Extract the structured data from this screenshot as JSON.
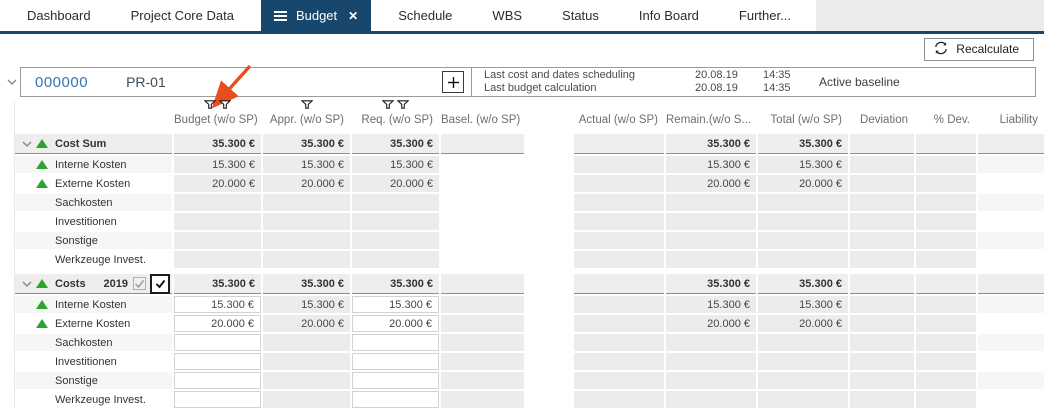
{
  "tabs": {
    "items": [
      {
        "label": "Dashboard",
        "active": false
      },
      {
        "label": "Project Core Data",
        "active": false
      },
      {
        "label": "Budget",
        "active": true
      },
      {
        "label": "Schedule",
        "active": false
      },
      {
        "label": "WBS",
        "active": false
      },
      {
        "label": "Status",
        "active": false
      },
      {
        "label": "Info Board",
        "active": false
      },
      {
        "label": "Further...",
        "active": false
      }
    ]
  },
  "toolbar": {
    "recalculate_label": "Recalculate"
  },
  "project_header": {
    "id": "000000",
    "code": "PR-01",
    "info": [
      {
        "label": "Last cost and dates scheduling",
        "date": "20.08.19",
        "time": "14:35"
      },
      {
        "label": "Last budget calculation",
        "date": "20.08.19",
        "time": "14:35"
      }
    ],
    "baseline": "Active baseline"
  },
  "table": {
    "columns": [
      {
        "key": "label",
        "header": "",
        "filters": 0
      },
      {
        "key": "budget",
        "header": "Budget (w/o SP)",
        "filters": 2
      },
      {
        "key": "appr",
        "header": "Appr. (w/o SP)",
        "filters": 1
      },
      {
        "key": "req",
        "header": "Req. (w/o SP)",
        "filters": 2
      },
      {
        "key": "basel",
        "header": "Basel. (w/o SP)",
        "filters": 0
      },
      {
        "key": "gap",
        "header": "",
        "filters": 0
      },
      {
        "key": "actual",
        "header": "Actual (w/o SP)",
        "filters": 0
      },
      {
        "key": "remain",
        "header": "Remain.(w/o S...",
        "filters": 0
      },
      {
        "key": "total",
        "header": "Total (w/o SP)",
        "filters": 0
      },
      {
        "key": "deviation",
        "header": "Deviation",
        "filters": 0
      },
      {
        "key": "pdev",
        "header": "% Dev.",
        "filters": 0
      },
      {
        "key": "liability",
        "header": "Liability",
        "filters": 0
      }
    ],
    "blocks": [
      {
        "rows": [
          {
            "type": "summary",
            "label": "Cost Sum",
            "trend": "up",
            "values": {
              "budget": "35.300 €",
              "appr": "35.300 €",
              "req": "35.300 €",
              "remain": "35.300 €",
              "total": "35.300 €"
            }
          },
          {
            "type": "child",
            "label": "Interne Kosten",
            "trend": "up",
            "values": {
              "budget": "15.300 €",
              "appr": "15.300 €",
              "req": "15.300 €",
              "remain": "15.300 €",
              "total": "15.300 €"
            }
          },
          {
            "type": "child",
            "label": "Externe Kosten",
            "trend": "up",
            "values": {
              "budget": "20.000 €",
              "appr": "20.000 €",
              "req": "20.000 €",
              "remain": "20.000 €",
              "total": "20.000 €"
            }
          },
          {
            "type": "child",
            "label": "Sachkosten",
            "values": {}
          },
          {
            "type": "child",
            "label": "Investitionen",
            "values": {}
          },
          {
            "type": "child",
            "label": "Sonstige",
            "values": {}
          },
          {
            "type": "child",
            "label": "Werkzeuge Invest.",
            "values": {}
          }
        ]
      },
      {
        "rows": [
          {
            "type": "summary",
            "label": "Costs",
            "trend": "up",
            "year": "2019",
            "checkboxes": true,
            "values": {
              "budget": "35.300 €",
              "appr": "35.300 €",
              "req": "35.300 €",
              "remain": "35.300 €",
              "total": "35.300 €"
            }
          },
          {
            "type": "child",
            "label": "Interne Kosten",
            "trend": "up",
            "values": {
              "budget": "15.300 €",
              "appr": "15.300 €",
              "req": "15.300 €",
              "remain": "15.300 €",
              "total": "15.300 €"
            }
          },
          {
            "type": "child",
            "label": "Externe Kosten",
            "trend": "up",
            "values": {
              "budget": "20.000 €",
              "appr": "20.000 €",
              "req": "20.000 €",
              "remain": "20.000 €",
              "total": "20.000 €"
            }
          },
          {
            "type": "child",
            "label": "Sachkosten",
            "values": {}
          },
          {
            "type": "child",
            "label": "Investitionen",
            "values": {}
          },
          {
            "type": "child",
            "label": "Sonstige",
            "values": {}
          },
          {
            "type": "child",
            "label": "Werkzeuge Invest.",
            "values": {}
          }
        ]
      }
    ]
  },
  "colors": {
    "navy": "#17476c",
    "trend_green": "#2fa32f",
    "project_id_blue": "#2e75b6",
    "annotation_orange": "#e84e1e",
    "cell_gray": "#ececec",
    "band_gray": "#efeeec"
  }
}
